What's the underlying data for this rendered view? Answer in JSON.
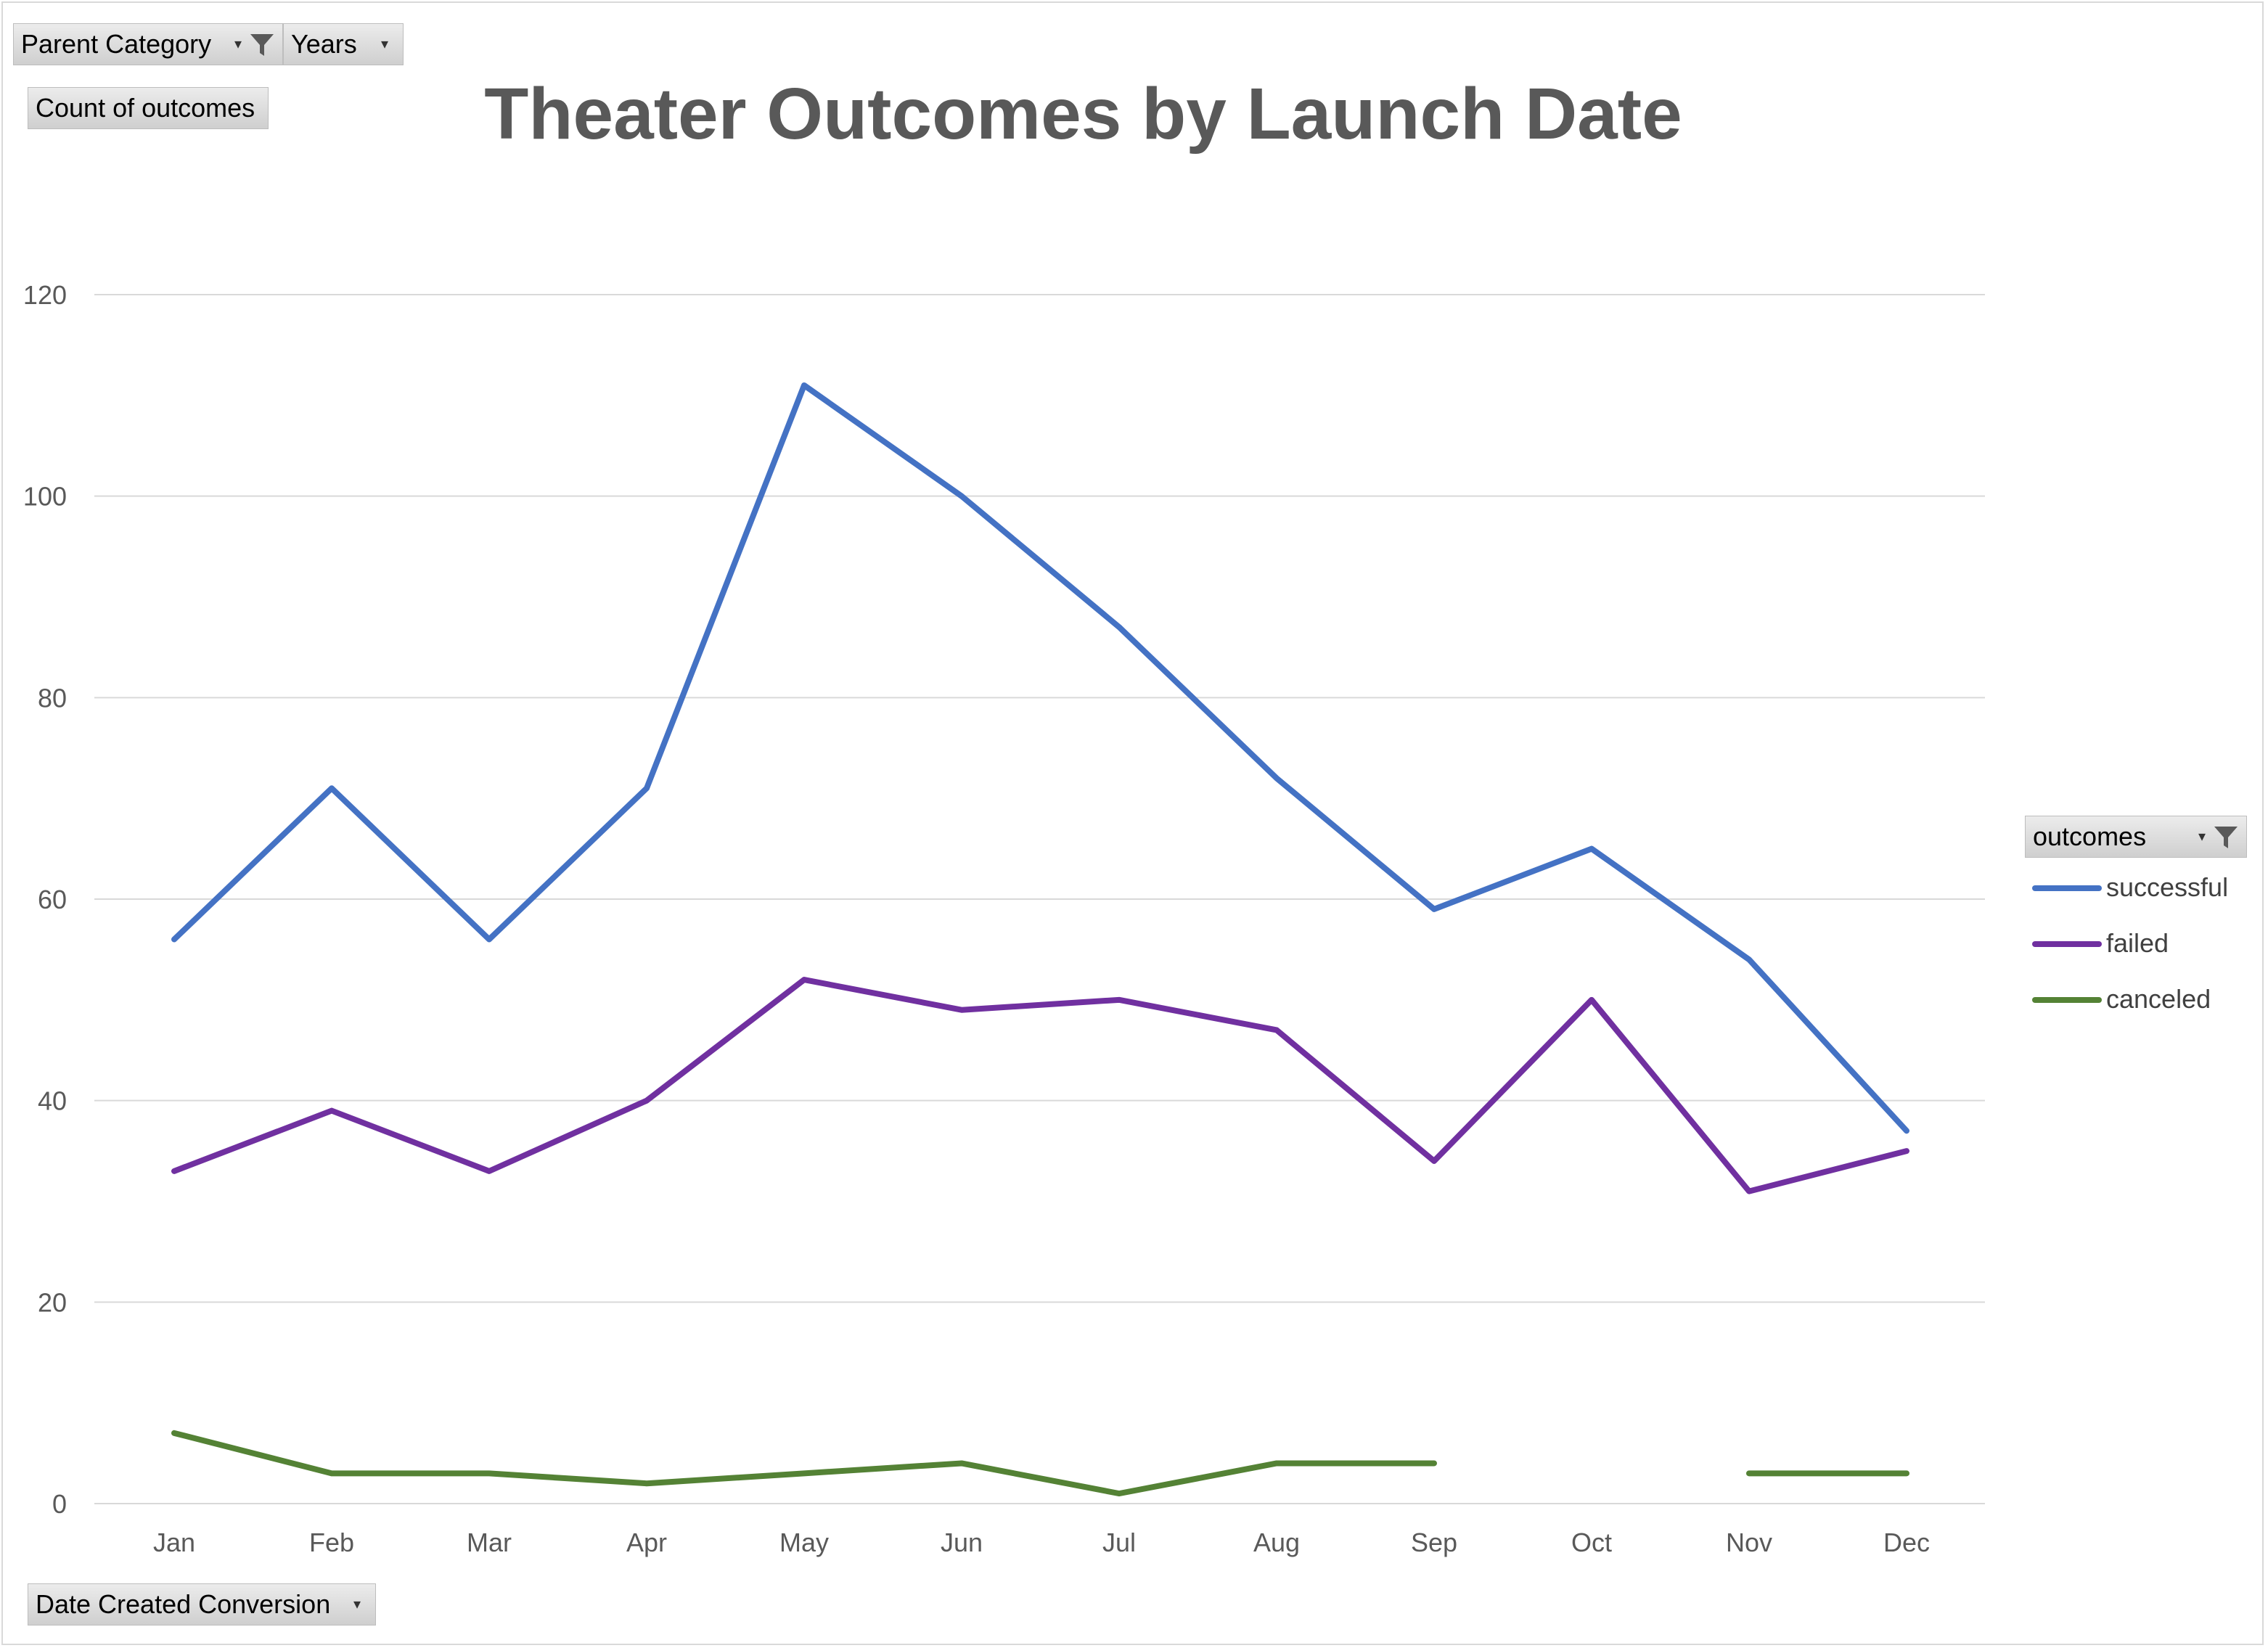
{
  "pivot": {
    "report_filter_1": "Parent Category",
    "report_filter_2": "Years",
    "values_field": "Count of outcomes",
    "legend_field": "outcomes",
    "axis_field": "Date Created Conversion"
  },
  "icons": {
    "filter": "filter-funnel-icon",
    "dropdown": "dropdown-arrow-icon"
  },
  "chart_data": {
    "type": "line",
    "title": "Theater Outcomes by Launch Date",
    "xlabel": "",
    "ylabel": "",
    "categories": [
      "Jan",
      "Feb",
      "Mar",
      "Apr",
      "May",
      "Jun",
      "Jul",
      "Aug",
      "Sep",
      "Oct",
      "Nov",
      "Dec"
    ],
    "ylim": [
      0,
      120
    ],
    "yticks": [
      0,
      20,
      40,
      60,
      80,
      100,
      120
    ],
    "grid": true,
    "legend": "right",
    "series": [
      {
        "name": "successful",
        "color": "#4472c4",
        "values": [
          56,
          71,
          56,
          71,
          111,
          100,
          87,
          72,
          59,
          65,
          54,
          37
        ]
      },
      {
        "name": "failed",
        "color": "#7030a0",
        "values": [
          33,
          39,
          33,
          40,
          52,
          49,
          50,
          47,
          34,
          50,
          31,
          35
        ]
      },
      {
        "name": "canceled",
        "color": "#548235",
        "values": [
          7,
          3,
          3,
          2,
          3,
          4,
          1,
          4,
          4,
          null,
          3,
          3
        ]
      }
    ]
  }
}
